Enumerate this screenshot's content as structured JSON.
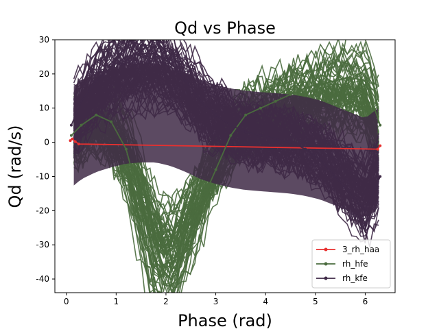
{
  "chart_data": {
    "type": "line",
    "title": "Qd vs Phase",
    "xlabel": "Phase (rad)",
    "ylabel": "Qd (rad/s)",
    "xlim": [
      -0.23,
      6.6
    ],
    "ylim": [
      -44,
      30
    ],
    "xticks": [
      0,
      1,
      2,
      3,
      4,
      5,
      6
    ],
    "yticks": [
      -40,
      -30,
      -20,
      -10,
      0,
      10,
      20,
      30
    ],
    "grid": false,
    "legend_position": "lower right",
    "series": [
      {
        "name": "3_rh_haa",
        "color": "#e8302f",
        "marker": "dot",
        "x": [
          0.08,
          0.12,
          0.18,
          0.25,
          6.25,
          6.3
        ],
        "y": [
          0.5,
          1.0,
          0.2,
          -0.5,
          -2.0,
          -1.0
        ]
      },
      {
        "name": "rh_hfe",
        "color": "#4a6b3e",
        "marker": "dot",
        "x": [
          0.1,
          0.3,
          0.6,
          0.9,
          1.2,
          1.5,
          1.8,
          2.1,
          2.4,
          2.7,
          3.0,
          3.3,
          3.6,
          3.9,
          4.2,
          4.5,
          4.8,
          5.1,
          5.4,
          5.7,
          6.0,
          6.3
        ],
        "y": [
          2,
          5,
          8,
          6,
          -2,
          -18,
          -35,
          -40,
          -30,
          -18,
          -8,
          2,
          8,
          10,
          12,
          14,
          16,
          17,
          18,
          19,
          18,
          5
        ]
      },
      {
        "name": "rh_kfe",
        "color": "#3f2a47",
        "marker": "dot",
        "x": [
          0.1,
          0.3,
          0.6,
          0.9,
          1.2,
          1.5,
          1.8,
          2.1,
          2.4,
          2.7,
          3.0,
          3.3,
          3.6,
          3.9,
          4.2,
          4.5,
          4.8,
          5.1,
          5.4,
          5.7,
          6.0,
          6.3
        ],
        "y": [
          5,
          12,
          18,
          22,
          25,
          26,
          26,
          23,
          18,
          12,
          8,
          5,
          3,
          2,
          1,
          0,
          -2,
          -5,
          -10,
          -15,
          -20,
          -10
        ]
      }
    ]
  }
}
